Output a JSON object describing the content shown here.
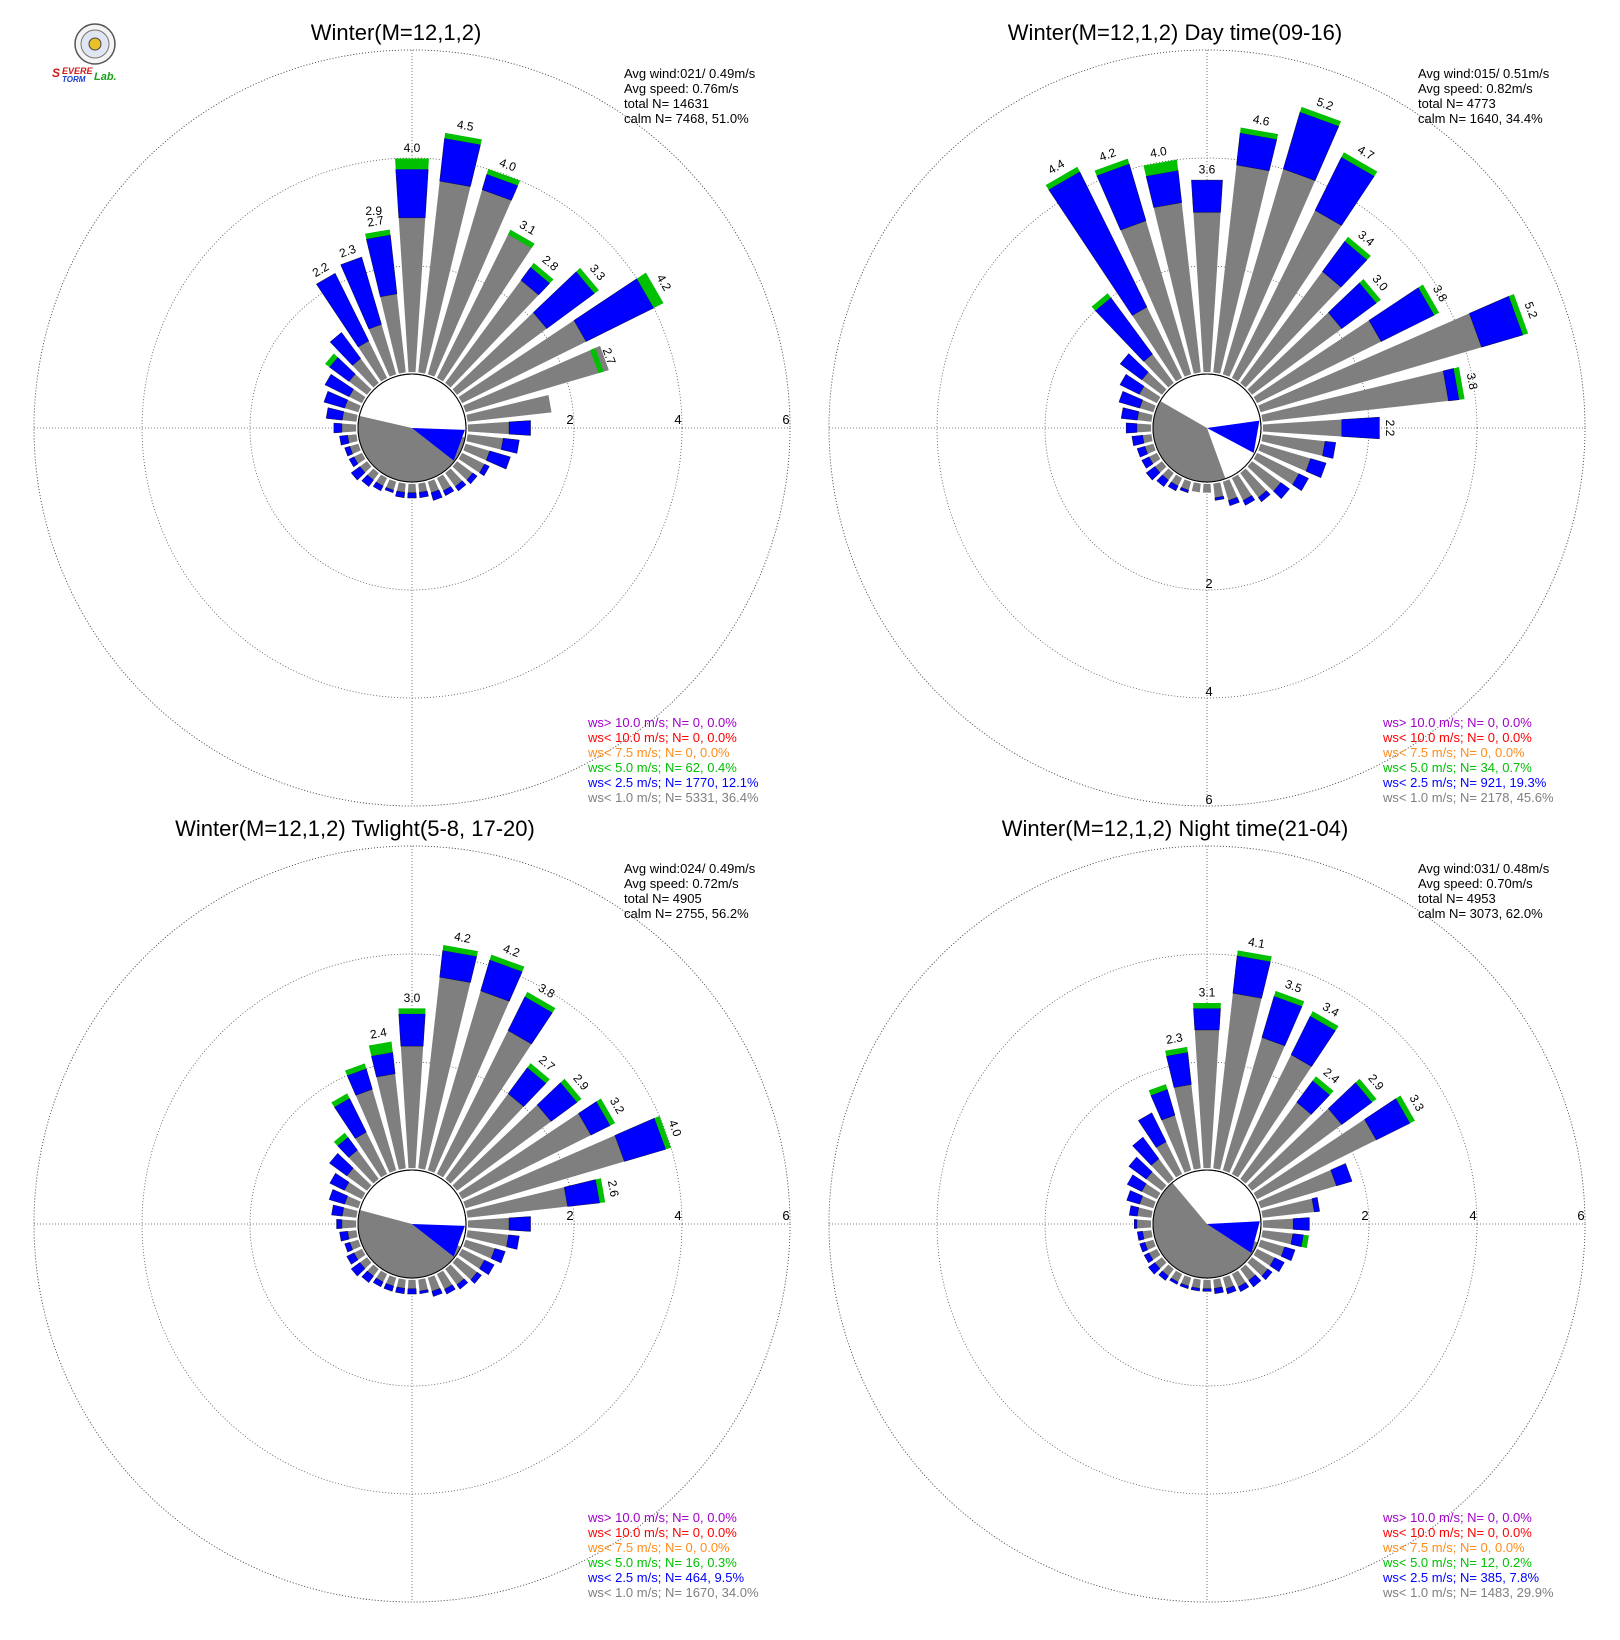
{
  "logo": {
    "wordmark": "SEVERE STORM Lab.",
    "colors": {
      "severe": "#d11a1a",
      "storm": "#1a3fd1",
      "lab": "#1aa01a"
    }
  },
  "colors": {
    "calm_fill": "#7f7f7f",
    "ws_1_0": "#7f7f7f",
    "ws_2_5": "#0000ff",
    "ws_5_0": "#00c000",
    "ws_7_5": "#ff8c1a",
    "ws_10_lt": "#ff0000",
    "ws_10_gt": "#a000c8",
    "grid": "#555555"
  },
  "chart_data": [
    {
      "type": "rose",
      "title": "Winter(M=12,1,2)",
      "stats": [
        "Avg wind:021/ 0.49m/s",
        "Avg speed: 0.76m/s",
        "total N=      14631",
        "calm N=   7468,  51.0%"
      ],
      "ring_labels": [
        "2",
        "4",
        "6"
      ],
      "ring_axis": "east",
      "calm_pie": {
        "start_deg": 100,
        "end_deg": 283
      },
      "mean_vector": {
        "direction_deg": 110,
        "length": 1.0
      },
      "directions_deg": [
        0,
        10,
        20,
        30,
        40,
        50,
        60,
        70,
        80,
        90,
        100,
        110,
        120,
        130,
        140,
        150,
        160,
        170,
        180,
        190,
        200,
        210,
        220,
        230,
        240,
        250,
        260,
        270,
        280,
        290,
        300,
        310,
        320,
        330,
        340,
        350
      ],
      "freq_1_0": [
        2.9,
        3.6,
        3.6,
        3.1,
        2.4,
        2.1,
        2.6,
        2.8,
        1.6,
        0.8,
        0.7,
        0.5,
        0.5,
        0.4,
        0.35,
        0.3,
        0.25,
        0.2,
        0.2,
        0.2,
        0.2,
        0.2,
        0.2,
        0.2,
        0.2,
        0.2,
        0.2,
        0.3,
        0.3,
        0.3,
        0.3,
        0.45,
        0.6,
        0.8,
        1.0,
        1.5
      ],
      "freq_2_5": [
        3.8,
        4.4,
        3.9,
        3.0,
        2.7,
        3.2,
        4.0,
        2.6,
        1.2,
        1.2,
        1.0,
        0.9,
        0.6,
        0.5,
        0.45,
        0.4,
        0.4,
        0.3,
        0.3,
        0.3,
        0.25,
        0.3,
        0.35,
        0.4,
        0.3,
        0.3,
        0.35,
        0.45,
        0.6,
        0.7,
        0.8,
        0.9,
        1.2,
        2.2,
        2.3,
        2.6
      ],
      "freq_5_0": [
        4.0,
        4.5,
        4.0,
        3.1,
        2.8,
        3.3,
        4.2,
        2.7,
        1.2,
        1.2,
        1.0,
        0.9,
        0.6,
        0.5,
        0.45,
        0.4,
        0.4,
        0.3,
        0.3,
        0.3,
        0.25,
        0.3,
        0.35,
        0.4,
        0.3,
        0.3,
        0.35,
        0.45,
        0.6,
        0.7,
        0.8,
        1.0,
        1.2,
        2.2,
        2.3,
        2.7
      ],
      "bar_labels": [
        "4.0",
        "4.5",
        "4.0",
        "3.1",
        "2.8",
        "3.3",
        "4.2",
        "2.7",
        "",
        "",
        "",
        "",
        "",
        "",
        "",
        "",
        "",
        "",
        "",
        "",
        "",
        "",
        "",
        "",
        "",
        "",
        "",
        "",
        "",
        "",
        "",
        "",
        "",
        "2.2",
        "2.3",
        "2.7"
      ],
      "extra_labels": [
        {
          "dir": 350,
          "text": "2.9",
          "r": 2.9
        }
      ],
      "legend": [
        {
          "text": "ws> 10.0 m/s; N=     0,  0.0%",
          "color_key": "ws_10_gt"
        },
        {
          "text": "ws< 10.0 m/s; N=     0,  0.0%",
          "color_key": "ws_10_lt"
        },
        {
          "text": "ws<  7.5 m/s; N=     0,  0.0%",
          "color_key": "ws_7_5"
        },
        {
          "text": "ws<  5.0 m/s; N=    62,  0.4%",
          "color_key": "ws_5_0"
        },
        {
          "text": "ws<  2.5 m/s; N=  1770, 12.1%",
          "color_key": "ws_2_5"
        },
        {
          "text": "ws<  1.0 m/s; N=  5331, 36.4%",
          "color_key": "ws_1_0"
        }
      ]
    },
    {
      "type": "rose",
      "title": "Winter(M=12,1,2) Day time(09-16)",
      "stats": [
        "Avg wind:015/ 0.51m/s",
        "Avg speed: 0.82m/s",
        "total N=       4773",
        "calm N=   1640,  34.4%"
      ],
      "ring_labels": [
        "2",
        "4",
        "6"
      ],
      "ring_axis": "south",
      "calm_pie": {
        "start_deg": 160,
        "end_deg": 300
      },
      "mean_vector": {
        "direction_deg": 100,
        "length": 1.0
      },
      "directions_deg": [
        0,
        10,
        20,
        30,
        40,
        50,
        60,
        70,
        80,
        90,
        100,
        110,
        120,
        130,
        140,
        150,
        160,
        170,
        180,
        190,
        200,
        210,
        220,
        230,
        240,
        250,
        260,
        270,
        280,
        290,
        300,
        310,
        320,
        330,
        340,
        350
      ],
      "freq_1_0": [
        3.0,
        3.9,
        4.0,
        3.5,
        2.6,
        2.1,
        2.6,
        4.3,
        3.5,
        1.5,
        1.2,
        1.0,
        0.9,
        0.7,
        0.6,
        0.5,
        0.4,
        0.3,
        0.2,
        0.2,
        0.2,
        0.2,
        0.2,
        0.2,
        0.2,
        0.2,
        0.2,
        0.3,
        0.3,
        0.3,
        0.4,
        0.5,
        0.7,
        1.5,
        3.0,
        3.2
      ],
      "freq_2_5": [
        3.6,
        4.5,
        5.1,
        4.6,
        3.3,
        2.9,
        3.7,
        5.1,
        3.7,
        2.2,
        1.4,
        1.3,
        1.1,
        0.9,
        0.7,
        0.6,
        0.5,
        0.35,
        0.2,
        0.2,
        0.25,
        0.3,
        0.35,
        0.4,
        0.35,
        0.35,
        0.4,
        0.5,
        0.6,
        0.7,
        0.8,
        1.0,
        2.0,
        4.3,
        4.1,
        3.8
      ],
      "freq_5_0": [
        3.6,
        4.6,
        5.2,
        4.7,
        3.4,
        3.0,
        3.8,
        5.2,
        3.8,
        2.2,
        1.4,
        1.3,
        1.1,
        0.9,
        0.7,
        0.6,
        0.5,
        0.35,
        0.2,
        0.2,
        0.25,
        0.3,
        0.35,
        0.4,
        0.35,
        0.35,
        0.4,
        0.5,
        0.6,
        0.7,
        0.8,
        1.0,
        2.1,
        4.4,
        4.2,
        4.0
      ],
      "bar_labels": [
        "3.6",
        "4.6",
        "5.2",
        "4.7",
        "3.4",
        "3.0",
        "3.8",
        "5.2",
        "3.8",
        "2.2",
        "",
        "",
        "",
        "",
        "",
        "",
        "",
        "",
        "",
        "",
        "",
        "",
        "",
        "",
        "",
        "",
        "",
        "",
        "",
        "",
        "",
        "",
        "",
        "4.4",
        "4.2",
        "4.0"
      ],
      "extra_labels": [],
      "legend": [
        {
          "text": "ws> 10.0 m/s; N=     0,  0.0%",
          "color_key": "ws_10_gt"
        },
        {
          "text": "ws< 10.0 m/s; N=     0,  0.0%",
          "color_key": "ws_10_lt"
        },
        {
          "text": "ws<  7.5 m/s; N=     0,  0.0%",
          "color_key": "ws_7_5"
        },
        {
          "text": "ws<  5.0 m/s; N=    34,  0.7%",
          "color_key": "ws_5_0"
        },
        {
          "text": "ws<  2.5 m/s; N=   921, 19.3%",
          "color_key": "ws_2_5"
        },
        {
          "text": "ws<  1.0 m/s; N=  2178, 45.6%",
          "color_key": "ws_1_0"
        }
      ]
    },
    {
      "type": "rose",
      "title": "Winter(M=12,1,2) Twlight(5-8, 17-20)",
      "stats": [
        "Avg wind:024/ 0.49m/s",
        "Avg speed: 0.72m/s",
        "total N=       4905",
        "calm N=   2755,  56.2%"
      ],
      "ring_labels": [
        "2",
        "4",
        "6"
      ],
      "ring_axis": "east",
      "calm_pie": {
        "start_deg": 115,
        "end_deg": 285
      },
      "mean_vector": {
        "direction_deg": 110,
        "length": 1.0
      },
      "directions_deg": [
        0,
        10,
        20,
        30,
        40,
        50,
        60,
        70,
        80,
        90,
        100,
        110,
        120,
        130,
        140,
        150,
        160,
        170,
        180,
        190,
        200,
        210,
        220,
        230,
        240,
        250,
        260,
        270,
        280,
        290,
        300,
        310,
        320,
        330,
        340,
        350
      ],
      "freq_1_0": [
        2.3,
        3.6,
        3.5,
        3.0,
        2.0,
        2.2,
        2.7,
        3.1,
        1.9,
        0.8,
        0.8,
        0.6,
        0.5,
        0.5,
        0.4,
        0.35,
        0.3,
        0.25,
        0.2,
        0.2,
        0.2,
        0.2,
        0.2,
        0.2,
        0.2,
        0.2,
        0.2,
        0.3,
        0.3,
        0.3,
        0.4,
        0.5,
        0.7,
        0.9,
        1.6,
        1.8
      ],
      "freq_2_5": [
        2.9,
        4.1,
        4.1,
        3.7,
        2.6,
        2.8,
        3.1,
        3.9,
        2.5,
        1.2,
        1.0,
        0.8,
        0.7,
        0.6,
        0.5,
        0.45,
        0.4,
        0.3,
        0.3,
        0.3,
        0.3,
        0.3,
        0.35,
        0.4,
        0.35,
        0.3,
        0.35,
        0.4,
        0.5,
        0.6,
        0.7,
        0.9,
        1.0,
        1.6,
        2.0,
        2.2
      ],
      "freq_5_0": [
        3.0,
        4.2,
        4.2,
        3.8,
        2.7,
        2.9,
        3.2,
        4.0,
        2.6,
        1.2,
        1.0,
        0.8,
        0.7,
        0.6,
        0.5,
        0.45,
        0.4,
        0.3,
        0.3,
        0.3,
        0.3,
        0.3,
        0.35,
        0.4,
        0.35,
        0.3,
        0.35,
        0.4,
        0.5,
        0.6,
        0.7,
        0.9,
        1.1,
        1.7,
        2.1,
        2.4
      ],
      "bar_labels": [
        "3.0",
        "4.2",
        "4.2",
        "3.8",
        "2.7",
        "2.9",
        "3.2",
        "4.0",
        "2.6",
        "",
        "",
        "",
        "",
        "",
        "",
        "",
        "",
        "",
        "",
        "",
        "",
        "",
        "",
        "",
        "",
        "",
        "",
        "",
        "",
        "",
        "",
        "",
        "",
        "",
        "",
        "2.4"
      ],
      "extra_labels": [],
      "legend": [
        {
          "text": "ws> 10.0 m/s; N=     0,  0.0%",
          "color_key": "ws_10_gt"
        },
        {
          "text": "ws< 10.0 m/s; N=     0,  0.0%",
          "color_key": "ws_10_lt"
        },
        {
          "text": "ws<  7.5 m/s; N=     0,  0.0%",
          "color_key": "ws_7_5"
        },
        {
          "text": "ws<  5.0 m/s; N=    16,  0.3%",
          "color_key": "ws_5_0"
        },
        {
          "text": "ws<  2.5 m/s; N=   464,  9.5%",
          "color_key": "ws_2_5"
        },
        {
          "text": "ws<  1.0 m/s; N=  1670, 34.0%",
          "color_key": "ws_1_0"
        }
      ]
    },
    {
      "type": "rose",
      "title": "Winter(M=12,1,2) Night time(21-04)",
      "stats": [
        "Avg wind:031/ 0.48m/s",
        "Avg speed: 0.70m/s",
        "total N=       4953",
        "calm N=   3073,  62.0%"
      ],
      "ring_labels": [
        "2",
        "4",
        "6"
      ],
      "ring_axis": "east",
      "calm_pie": {
        "start_deg": 110,
        "end_deg": 320
      },
      "mean_vector": {
        "direction_deg": 105,
        "length": 1.0
      },
      "directions_deg": [
        0,
        10,
        20,
        30,
        40,
        50,
        60,
        70,
        80,
        90,
        100,
        110,
        120,
        130,
        140,
        150,
        160,
        170,
        180,
        190,
        200,
        210,
        220,
        230,
        240,
        250,
        260,
        270,
        280,
        290,
        300,
        310,
        320,
        330,
        340,
        350
      ],
      "freq_1_0": [
        2.6,
        3.3,
        2.6,
        2.5,
        1.8,
        2.1,
        2.5,
        1.5,
        1.0,
        0.6,
        0.6,
        0.5,
        0.4,
        0.4,
        0.3,
        0.3,
        0.25,
        0.2,
        0.2,
        0.2,
        0.2,
        0.2,
        0.2,
        0.2,
        0.2,
        0.2,
        0.2,
        0.3,
        0.3,
        0.3,
        0.35,
        0.4,
        0.5,
        0.7,
        1.1,
        1.6
      ],
      "freq_2_5": [
        3.0,
        4.0,
        3.4,
        3.3,
        2.3,
        2.8,
        3.2,
        1.8,
        1.1,
        0.9,
        0.8,
        0.7,
        0.6,
        0.5,
        0.45,
        0.4,
        0.35,
        0.3,
        0.25,
        0.25,
        0.25,
        0.25,
        0.3,
        0.35,
        0.3,
        0.3,
        0.3,
        0.35,
        0.45,
        0.55,
        0.65,
        0.8,
        1.0,
        1.3,
        1.6,
        2.2
      ],
      "freq_5_0": [
        3.1,
        4.1,
        3.5,
        3.4,
        2.4,
        2.9,
        3.3,
        1.8,
        1.1,
        0.9,
        0.9,
        0.7,
        0.6,
        0.5,
        0.45,
        0.4,
        0.35,
        0.3,
        0.25,
        0.25,
        0.25,
        0.25,
        0.3,
        0.35,
        0.3,
        0.3,
        0.3,
        0.35,
        0.45,
        0.55,
        0.65,
        0.8,
        1.0,
        1.3,
        1.7,
        2.3
      ],
      "bar_labels": [
        "3.1",
        "4.1",
        "3.5",
        "3.4",
        "2.4",
        "2.9",
        "3.3",
        "",
        "",
        "",
        "",
        "",
        "",
        "",
        "",
        "",
        "",
        "",
        "",
        "",
        "",
        "",
        "",
        "",
        "",
        "",
        "",
        "",
        "",
        "",
        "",
        "",
        "",
        "",
        "",
        "2.3"
      ],
      "extra_labels": [],
      "legend": [
        {
          "text": "ws> 10.0 m/s; N=     0,  0.0%",
          "color_key": "ws_10_gt"
        },
        {
          "text": "ws< 10.0 m/s; N=     0,  0.0%",
          "color_key": "ws_10_lt"
        },
        {
          "text": "ws<  7.5 m/s; N=     0,  0.0%",
          "color_key": "ws_7_5"
        },
        {
          "text": "ws<  5.0 m/s; N=    12,  0.2%",
          "color_key": "ws_5_0"
        },
        {
          "text": "ws<  2.5 m/s; N=   385,  7.8%",
          "color_key": "ws_2_5"
        },
        {
          "text": "ws<  1.0 m/s; N=  1483, 29.9%",
          "color_key": "ws_1_0"
        }
      ]
    }
  ]
}
